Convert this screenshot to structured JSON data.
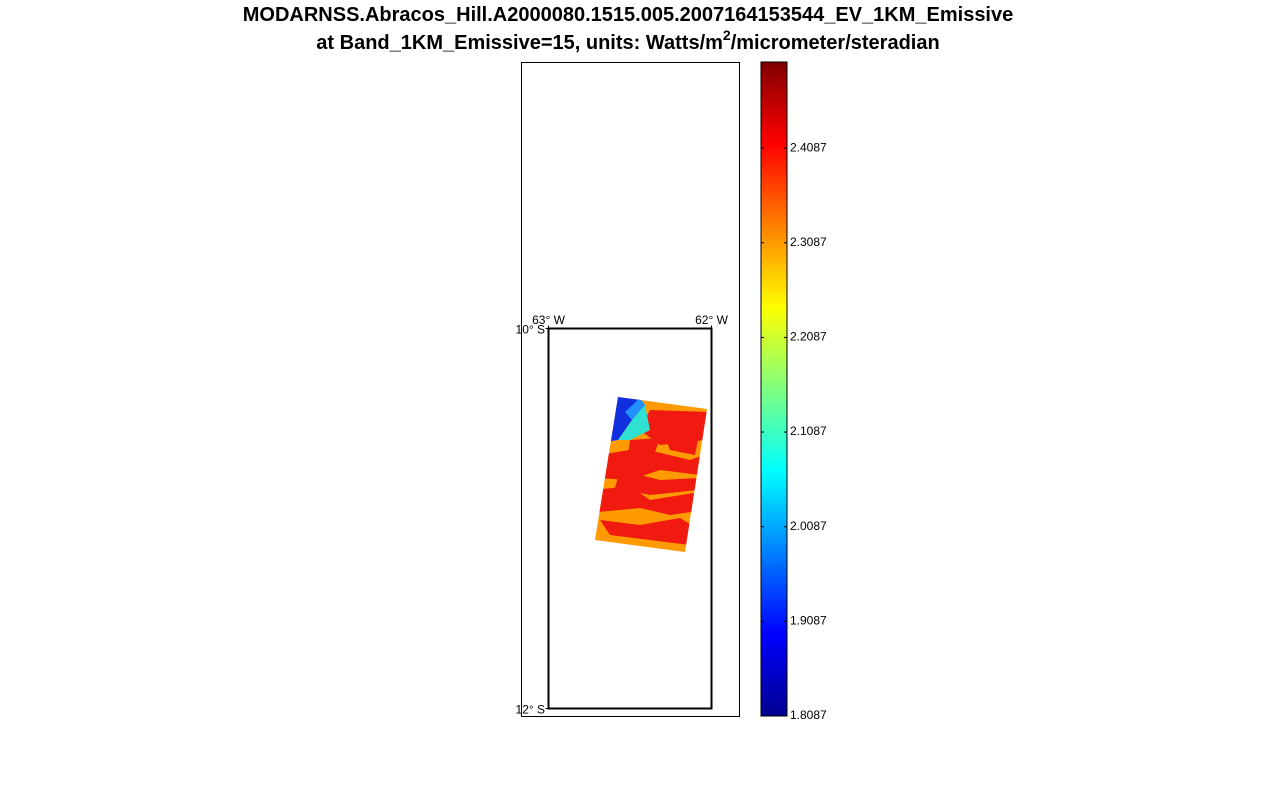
{
  "title": {
    "line1": "MODARNSS.Abracos_Hill.A2000080.1515.005.2007164153544_EV_1KM_Emissive",
    "line2_before": "at Band_1KM_Emissive=15, units: Watts/m",
    "line2_sup": "2",
    "line2_after": "/micrometer/steradian"
  },
  "map": {
    "lonlim": [
      -63,
      -62
    ],
    "latlim": [
      -12,
      -10
    ],
    "lonticks": [
      {
        "value": -63,
        "label": "63° W"
      },
      {
        "value": -62,
        "label": "62° W"
      }
    ],
    "latticks": [
      {
        "value": -10,
        "label": "10° S"
      },
      {
        "value": -12,
        "label": "12° S"
      }
    ]
  },
  "colorbar": {
    "colormap": "jet",
    "clim": [
      1.8087,
      2.4997
    ],
    "ticks": [
      1.8087,
      1.9087,
      2.0087,
      2.1087,
      2.2087,
      2.3087,
      2.4087
    ]
  }
}
